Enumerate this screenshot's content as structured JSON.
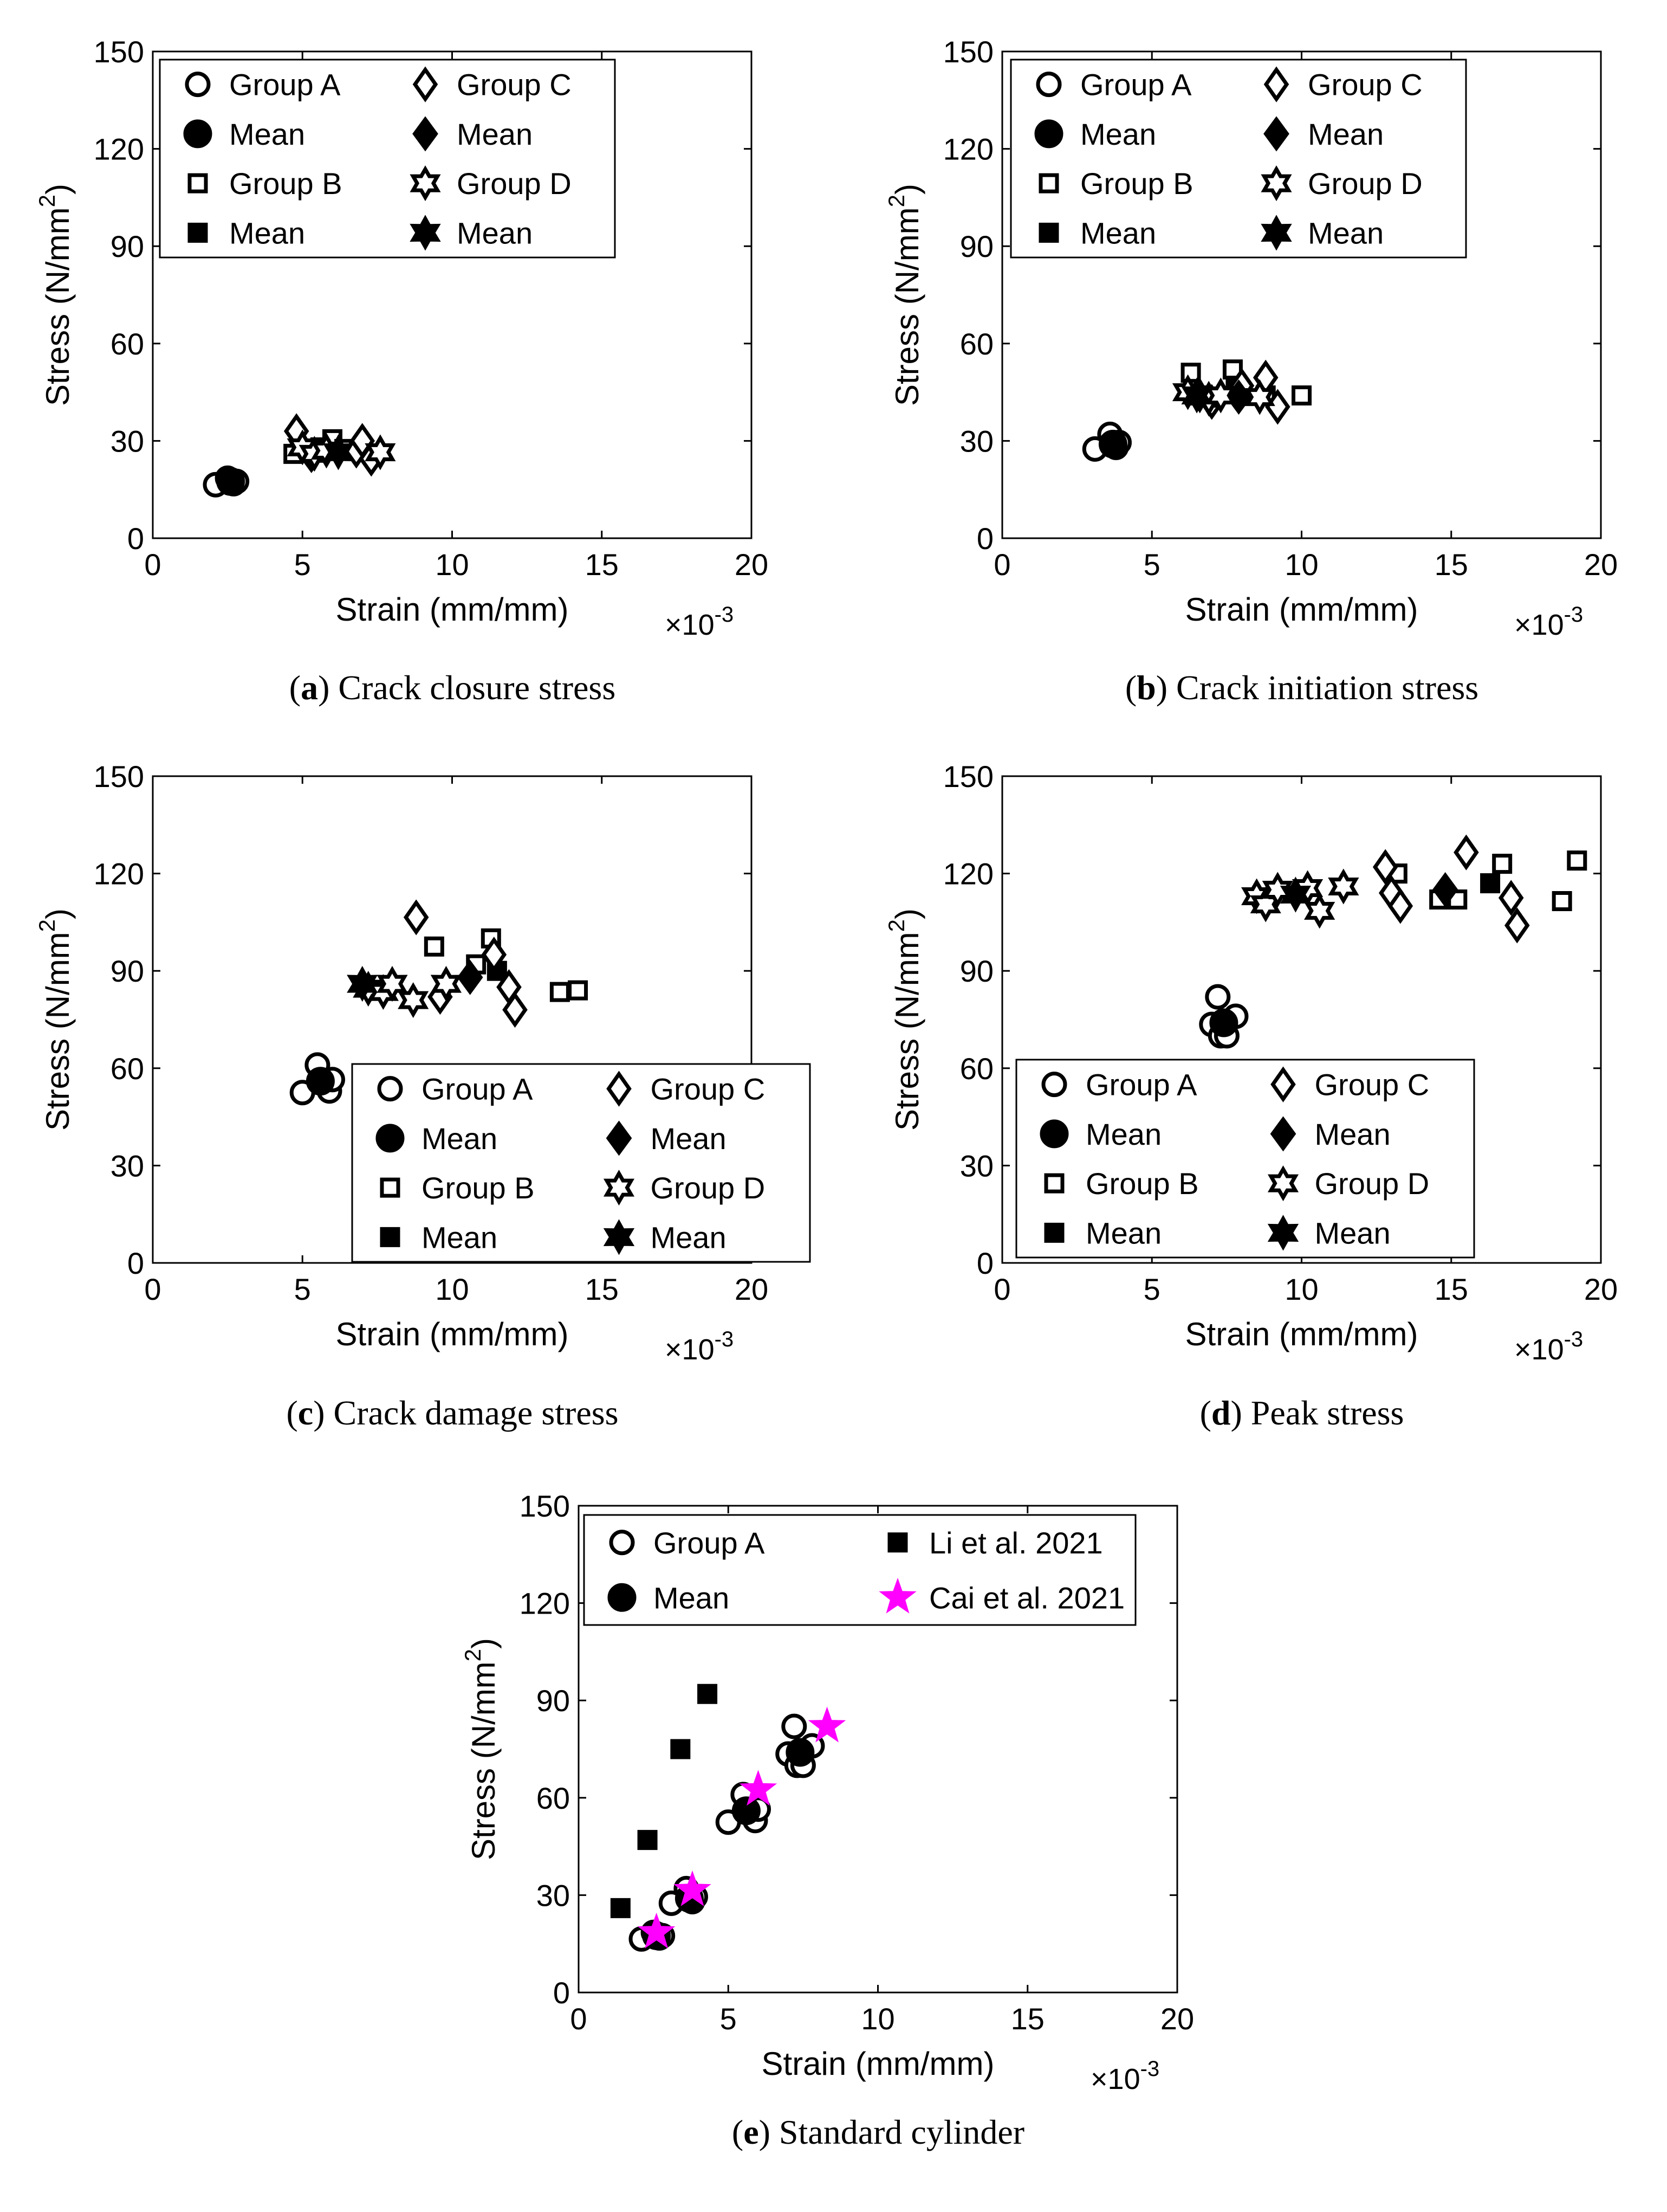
{
  "chart_data": [
    {
      "type": "scatter",
      "panel_letter": "a",
      "caption": "Crack closure stress",
      "xlabel": "Strain (mm/mm)",
      "ylabel": "Stress (N/mm²)",
      "ylabel_base": "Stress (N/mm",
      "ylabel_sup": "2",
      "ylabel_close": ")",
      "x_multiplier": "×10",
      "x_multiplier_exp": "-3",
      "xlim": [
        0,
        20
      ],
      "ylim": [
        0,
        150
      ],
      "xticks": [
        0,
        5,
        10,
        15,
        20
      ],
      "yticks": [
        0,
        30,
        60,
        90,
        120,
        150
      ],
      "grid": false,
      "legend_position": "top-left",
      "legend_columns": 2,
      "series": [
        {
          "name": "Group A",
          "marker": "circle-open",
          "color": "#000000",
          "x": [
            2.1,
            2.5,
            2.7,
            2.8
          ],
          "y": [
            16.5,
            18.5,
            16.8,
            17.5
          ]
        },
        {
          "name": "Mean",
          "marker": "circle-filled",
          "color": "#000000",
          "x": [
            2.6
          ],
          "y": [
            17.5
          ]
        },
        {
          "name": "Group B",
          "marker": "square-open",
          "color": "#000000",
          "x": [
            4.7,
            5.6,
            6.0,
            6.4
          ],
          "y": [
            26,
            28,
            30.5,
            27.5
          ]
        },
        {
          "name": "Mean",
          "marker": "square-filled",
          "color": "#000000",
          "x": [
            5.6
          ],
          "y": [
            27.5
          ]
        },
        {
          "name": "Group C",
          "marker": "diamond-open",
          "color": "#000000",
          "x": [
            4.8,
            6.8,
            7.0,
            7.3
          ],
          "y": [
            33,
            27,
            30,
            24.5
          ]
        },
        {
          "name": "Mean",
          "marker": "diamond-filled",
          "color": "#000000",
          "x": [
            5.3
          ],
          "y": [
            25.5
          ]
        },
        {
          "name": "Group D",
          "marker": "star6-open",
          "color": "#000000",
          "x": [
            5.0,
            5.4,
            5.8,
            7.6
          ],
          "y": [
            28,
            26,
            27,
            26.5
          ]
        },
        {
          "name": "Mean",
          "marker": "star6-filled",
          "color": "#000000",
          "x": [
            6.2
          ],
          "y": [
            26.5
          ]
        }
      ]
    },
    {
      "type": "scatter",
      "panel_letter": "b",
      "caption": "Crack initiation stress",
      "xlabel": "Strain (mm/mm)",
      "ylabel": "Stress (N/mm²)",
      "ylabel_base": "Stress (N/mm",
      "ylabel_sup": "2",
      "ylabel_close": ")",
      "x_multiplier": "×10",
      "x_multiplier_exp": "-3",
      "xlim": [
        0,
        20
      ],
      "ylim": [
        0,
        150
      ],
      "xticks": [
        0,
        5,
        10,
        15,
        20
      ],
      "yticks": [
        0,
        30,
        60,
        90,
        120,
        150
      ],
      "grid": false,
      "legend_position": "top-left",
      "legend_columns": 2,
      "series": [
        {
          "name": "Group A",
          "marker": "circle-open",
          "color": "#000000",
          "x": [
            3.1,
            3.6,
            3.8,
            3.9
          ],
          "y": [
            27.5,
            32,
            28,
            29.5
          ]
        },
        {
          "name": "Mean",
          "marker": "circle-filled",
          "color": "#000000",
          "x": [
            3.7
          ],
          "y": [
            29
          ]
        },
        {
          "name": "Group B",
          "marker": "square-open",
          "color": "#000000",
          "x": [
            6.3,
            6.6,
            7.7,
            7.9,
            8.8,
            10.0
          ],
          "y": [
            51,
            44,
            52,
            46,
            44,
            44
          ]
        },
        {
          "name": "Mean",
          "marker": "square-filled",
          "color": "#000000",
          "x": [
            7.8
          ],
          "y": [
            46
          ]
        },
        {
          "name": "Group C",
          "marker": "diamond-open",
          "color": "#000000",
          "x": [
            7.0,
            8.0,
            8.8,
            9.2
          ],
          "y": [
            42,
            47,
            49.5,
            40.5
          ]
        },
        {
          "name": "Mean",
          "marker": "diamond-filled",
          "color": "#000000",
          "x": [
            7.9
          ],
          "y": [
            43.5
          ]
        },
        {
          "name": "Group D",
          "marker": "star6-open",
          "color": "#000000",
          "x": [
            6.2,
            6.6,
            6.9,
            7.3,
            8.6
          ],
          "y": [
            45,
            44,
            43,
            44,
            43.5
          ]
        },
        {
          "name": "Mean",
          "marker": "star6-filled",
          "color": "#000000",
          "x": [
            6.5
          ],
          "y": [
            44
          ]
        }
      ]
    },
    {
      "type": "scatter",
      "panel_letter": "c",
      "caption": "Crack damage stress",
      "xlabel": "Strain (mm/mm)",
      "ylabel": "Stress (N/mm²)",
      "ylabel_base": "Stress (N/mm",
      "ylabel_sup": "2",
      "ylabel_close": ")",
      "x_multiplier": "×10",
      "x_multiplier_exp": "-3",
      "xlim": [
        0,
        20
      ],
      "ylim": [
        0,
        150
      ],
      "xticks": [
        0,
        5,
        10,
        15,
        20
      ],
      "yticks": [
        0,
        30,
        60,
        90,
        120,
        150
      ],
      "grid": false,
      "legend_position": "bottom-right",
      "legend_columns": 2,
      "series": [
        {
          "name": "Group A",
          "marker": "circle-open",
          "color": "#000000",
          "x": [
            5.0,
            5.5,
            5.9,
            6.0
          ],
          "y": [
            52.5,
            61,
            53,
            56.5
          ]
        },
        {
          "name": "Mean",
          "marker": "circle-filled",
          "color": "#000000",
          "x": [
            5.6
          ],
          "y": [
            56
          ]
        },
        {
          "name": "Group B",
          "marker": "square-open",
          "color": "#000000",
          "x": [
            9.4,
            10.8,
            11.3,
            13.6,
            14.2
          ],
          "y": [
            97.5,
            92,
            100,
            83.5,
            84
          ]
        },
        {
          "name": "Mean",
          "marker": "square-filled",
          "color": "#000000",
          "x": [
            11.5
          ],
          "y": [
            90
          ]
        },
        {
          "name": "Group C",
          "marker": "diamond-open",
          "color": "#000000",
          "x": [
            8.8,
            9.6,
            11.4,
            11.9,
            12.1
          ],
          "y": [
            106.5,
            82,
            95,
            85,
            78
          ]
        },
        {
          "name": "Mean",
          "marker": "diamond-filled",
          "color": "#000000",
          "x": [
            10.6
          ],
          "y": [
            88
          ]
        },
        {
          "name": "Group D",
          "marker": "star6-open",
          "color": "#000000",
          "x": [
            7.2,
            7.7,
            8.0,
            8.7,
            9.8
          ],
          "y": [
            84.5,
            83.5,
            86,
            81,
            86
          ]
        },
        {
          "name": "Mean",
          "marker": "star6-filled",
          "color": "#000000",
          "x": [
            7.0
          ],
          "y": [
            86
          ]
        }
      ]
    },
    {
      "type": "scatter",
      "panel_letter": "d",
      "caption": "Peak stress",
      "xlabel": "Strain (mm/mm)",
      "ylabel": "Stress (N/mm²)",
      "ylabel_base": "Stress (N/mm",
      "ylabel_sup": "2",
      "ylabel_close": ")",
      "x_multiplier": "×10",
      "x_multiplier_exp": "-3",
      "xlim": [
        0,
        20
      ],
      "ylim": [
        0,
        150
      ],
      "xticks": [
        0,
        5,
        10,
        15,
        20
      ],
      "yticks": [
        0,
        30,
        60,
        90,
        120,
        150
      ],
      "grid": false,
      "legend_position": "bottom-left",
      "legend_columns": 2,
      "series": [
        {
          "name": "Group A",
          "marker": "circle-open",
          "color": "#000000",
          "x": [
            7.0,
            7.2,
            7.3,
            7.5,
            7.8
          ],
          "y": [
            73.5,
            82,
            70,
            70,
            76
          ]
        },
        {
          "name": "Mean",
          "marker": "circle-filled",
          "color": "#000000",
          "x": [
            7.4
          ],
          "y": [
            74
          ]
        },
        {
          "name": "Group B",
          "marker": "square-open",
          "color": "#000000",
          "x": [
            13.2,
            14.6,
            15.2,
            16.7,
            18.7,
            19.2
          ],
          "y": [
            120,
            112,
            112,
            123,
            111.5,
            124
          ]
        },
        {
          "name": "Mean",
          "marker": "square-filled",
          "color": "#000000",
          "x": [
            16.3
          ],
          "y": [
            117
          ]
        },
        {
          "name": "Group C",
          "marker": "diamond-open",
          "color": "#000000",
          "x": [
            12.8,
            13.0,
            13.3,
            15.5,
            17.0,
            17.2
          ],
          "y": [
            122,
            114,
            110,
            126.5,
            112.5,
            104
          ]
        },
        {
          "name": "Mean",
          "marker": "diamond-filled",
          "color": "#000000",
          "x": [
            14.8
          ],
          "y": [
            115
          ]
        },
        {
          "name": "Group D",
          "marker": "star6-open",
          "color": "#000000",
          "x": [
            8.5,
            8.8,
            9.2,
            10.2,
            10.6,
            11.4
          ],
          "y": [
            113,
            110.5,
            115,
            115.5,
            108.5,
            116
          ]
        },
        {
          "name": "Mean",
          "marker": "star6-filled",
          "color": "#000000",
          "x": [
            9.8
          ],
          "y": [
            113.5
          ]
        }
      ]
    },
    {
      "type": "scatter",
      "panel_letter": "e",
      "caption": "Standard cylinder",
      "xlabel": "Strain (mm/mm)",
      "ylabel": "Stress (N/mm²)",
      "ylabel_base": "Stress (N/mm",
      "ylabel_sup": "2",
      "ylabel_close": ")",
      "x_multiplier": "×10",
      "x_multiplier_exp": "-3",
      "xlim": [
        0,
        20
      ],
      "ylim": [
        0,
        150
      ],
      "xticks": [
        0,
        5,
        10,
        15,
        20
      ],
      "yticks": [
        0,
        30,
        60,
        90,
        120,
        150
      ],
      "grid": false,
      "legend_position": "top",
      "legend_columns": 2,
      "series": [
        {
          "name": "Group A",
          "marker": "circle-open",
          "color": "#000000",
          "x": [
            2.1,
            2.5,
            2.7,
            2.8,
            3.1,
            3.6,
            3.8,
            3.9,
            5.0,
            5.5,
            5.9,
            6.0,
            7.0,
            7.2,
            7.3,
            7.5,
            7.8
          ],
          "y": [
            16.5,
            18.5,
            16.8,
            17.5,
            27.5,
            32,
            28,
            29.5,
            52.5,
            61,
            53,
            56.5,
            73.5,
            82,
            70,
            70,
            76
          ]
        },
        {
          "name": "Mean",
          "marker": "circle-filled",
          "color": "#000000",
          "x": [
            2.6,
            3.7,
            5.6,
            7.4
          ],
          "y": [
            17.5,
            29,
            56,
            74
          ]
        },
        {
          "name": "Li et al. 2021",
          "marker": "square-filled",
          "color": "#000000",
          "x": [
            1.4,
            2.3,
            3.4,
            4.3
          ],
          "y": [
            26,
            47,
            75,
            92
          ]
        },
        {
          "name": "Cai et al. 2021",
          "marker": "star5-filled",
          "color": "#ff00ff",
          "x": [
            2.6,
            3.8,
            6.0,
            8.3
          ],
          "y": [
            18.5,
            31.5,
            62.5,
            82
          ]
        }
      ]
    }
  ]
}
